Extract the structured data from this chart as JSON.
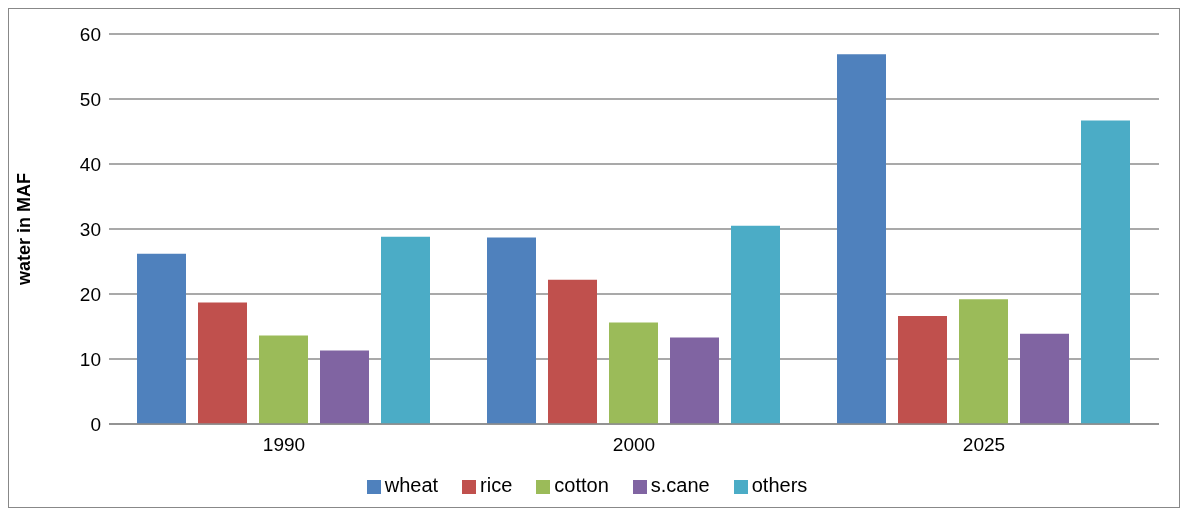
{
  "chart_data": {
    "type": "bar",
    "ylabel": "water in MAF",
    "categories": [
      "1990",
      "2000",
      "2025"
    ],
    "series": [
      {
        "name": "wheat",
        "color": "#4f81bd",
        "values": [
          26.2,
          28.7,
          56.9
        ]
      },
      {
        "name": "rice",
        "color": "#c0504d",
        "values": [
          18.7,
          22.2,
          16.6
        ]
      },
      {
        "name": "cotton",
        "color": "#9bbb59",
        "values": [
          13.6,
          15.6,
          19.2
        ]
      },
      {
        "name": "s.cane",
        "color": "#8064a2",
        "values": [
          11.3,
          13.3,
          13.9
        ]
      },
      {
        "name": "others",
        "color": "#4bacc6",
        "values": [
          28.8,
          30.5,
          46.7
        ]
      }
    ],
    "ylim": [
      0,
      60
    ],
    "yticks": [
      0,
      10,
      20,
      30,
      40,
      50,
      60
    ],
    "grid": "y",
    "legend": "bottom"
  }
}
